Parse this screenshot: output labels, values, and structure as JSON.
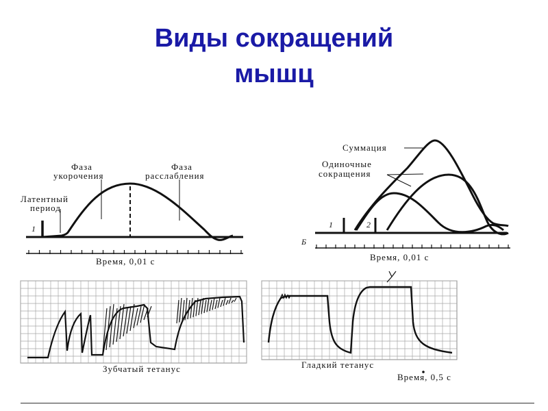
{
  "title": {
    "line1": "Виды сокращений",
    "line2": "мышц"
  },
  "panel_a": {
    "phase_shortening": [
      "Фаза",
      "укорочения"
    ],
    "phase_relaxation": [
      "Фаза",
      "расслабления"
    ],
    "latent_period": [
      "Латентный",
      "период"
    ],
    "stimulus_marker": "1",
    "time_axis": "Время, 0,01 с"
  },
  "panel_b": {
    "panel_letter": "Б",
    "summation": "Суммация",
    "single_contractions": [
      "Одиночные",
      "сокращения"
    ],
    "stimulus_1": "1",
    "stimulus_2": "2",
    "time_axis": "Время, 0,01 с"
  },
  "recording_left": {
    "caption": "Зубчатый тетанус"
  },
  "recording_right": {
    "caption": "Гладкий тетанус",
    "time_axis": "Время, 0,5 с"
  },
  "colors": {
    "title": "#1a1aa6",
    "ink": "#111111",
    "grid": "#9a9a9a"
  }
}
